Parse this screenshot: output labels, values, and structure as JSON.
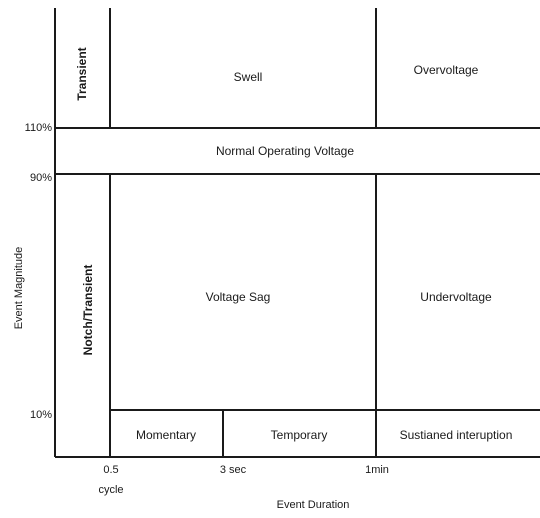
{
  "regions": {
    "transient": "Transient",
    "swell": "Swell",
    "overvoltage": "Overvoltage",
    "normal": "Normal Operating Voltage",
    "notch_transient": "Notch/Transient",
    "voltage_sag": "Voltage Sag",
    "undervoltage": "Undervoltage",
    "momentary": "Momentary",
    "temporary": "Temporary",
    "sustained": "Sustianed interuption"
  },
  "y_axis": {
    "label": "Event Magnitude",
    "ticks": [
      "110%",
      "90%",
      "10%"
    ]
  },
  "x_axis": {
    "label": "Event Duration",
    "ticks": [
      "0.5",
      "3 sec",
      "1min"
    ],
    "tick_sub": "cycle"
  }
}
